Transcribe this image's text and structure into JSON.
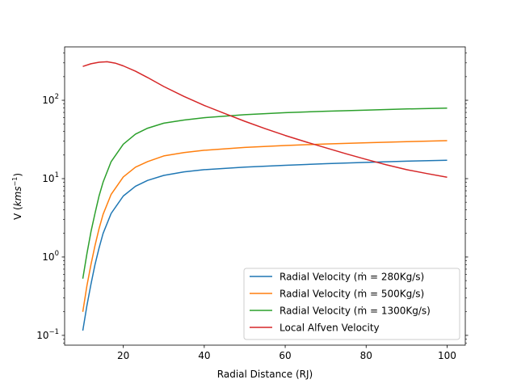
{
  "chart_data": {
    "type": "line",
    "xlabel": "Radial Distance (RJ)",
    "ylabel_prefix": "V (",
    "ylabel_math": "kms",
    "ylabel_sup": "−1",
    "ylabel_suffix": ")",
    "xlim": [
      5.5,
      104.5
    ],
    "ylim": [
      0.075,
      480
    ],
    "yscale": "log",
    "x_ticks": [
      {
        "value": 20,
        "label": "20"
      },
      {
        "value": 40,
        "label": "40"
      },
      {
        "value": 60,
        "label": "60"
      },
      {
        "value": 80,
        "label": "80"
      },
      {
        "value": 100,
        "label": "100"
      }
    ],
    "y_ticks": [
      {
        "value": 0.1,
        "base": "10",
        "exp": "−1"
      },
      {
        "value": 1,
        "base": "10",
        "exp": "0"
      },
      {
        "value": 10,
        "base": "10",
        "exp": "1"
      },
      {
        "value": 100,
        "base": "10",
        "exp": "2"
      }
    ],
    "legend_position": "lower-right",
    "series": [
      {
        "name": "Radial Velocity (ṁ = 280Kg/s)",
        "color": "#1f77b4",
        "x": [
          10,
          11,
          12,
          13,
          14,
          15,
          17,
          20,
          23,
          26,
          30,
          35,
          40,
          50,
          60,
          70,
          80,
          90,
          100
        ],
        "y": [
          0.115,
          0.24,
          0.45,
          0.8,
          1.3,
          2.0,
          3.6,
          6.0,
          8.0,
          9.5,
          11.0,
          12.2,
          13.0,
          14.0,
          14.8,
          15.5,
          16.1,
          16.7,
          17.2
        ]
      },
      {
        "name": "Radial Velocity (ṁ = 500Kg/s)",
        "color": "#ff7f0e",
        "x": [
          10,
          11,
          12,
          13,
          14,
          15,
          17,
          20,
          23,
          26,
          30,
          35,
          40,
          50,
          60,
          70,
          80,
          90,
          100
        ],
        "y": [
          0.2,
          0.43,
          0.8,
          1.4,
          2.3,
          3.5,
          6.3,
          10.5,
          14.0,
          16.5,
          19.5,
          21.5,
          23.0,
          25.0,
          26.5,
          27.7,
          28.7,
          29.7,
          30.5
        ]
      },
      {
        "name": "Radial Velocity (ṁ = 1300Kg/s)",
        "color": "#2ca02c",
        "x": [
          10,
          11,
          12,
          13,
          14,
          15,
          17,
          20,
          23,
          26,
          30,
          35,
          40,
          50,
          60,
          70,
          80,
          90,
          100
        ],
        "y": [
          0.53,
          1.1,
          2.1,
          3.6,
          6.0,
          9.0,
          16.5,
          27.5,
          37.0,
          44.0,
          51.0,
          56.0,
          60.0,
          65.5,
          69.5,
          72.5,
          75.0,
          77.5,
          79.5
        ]
      },
      {
        "name": "Local Alfven Velocity",
        "color": "#d62728",
        "x": [
          10,
          12,
          14,
          16,
          18,
          20,
          23,
          26,
          30,
          35,
          40,
          45,
          50,
          55,
          60,
          65,
          70,
          75,
          80,
          85,
          90,
          95,
          100
        ],
        "y": [
          270,
          292,
          306,
          310,
          298,
          275,
          235,
          195,
          150,
          112,
          86,
          68,
          54,
          43.5,
          35.5,
          29.5,
          24.8,
          20.8,
          17.6,
          15.0,
          13.0,
          11.6,
          10.4
        ]
      }
    ]
  }
}
